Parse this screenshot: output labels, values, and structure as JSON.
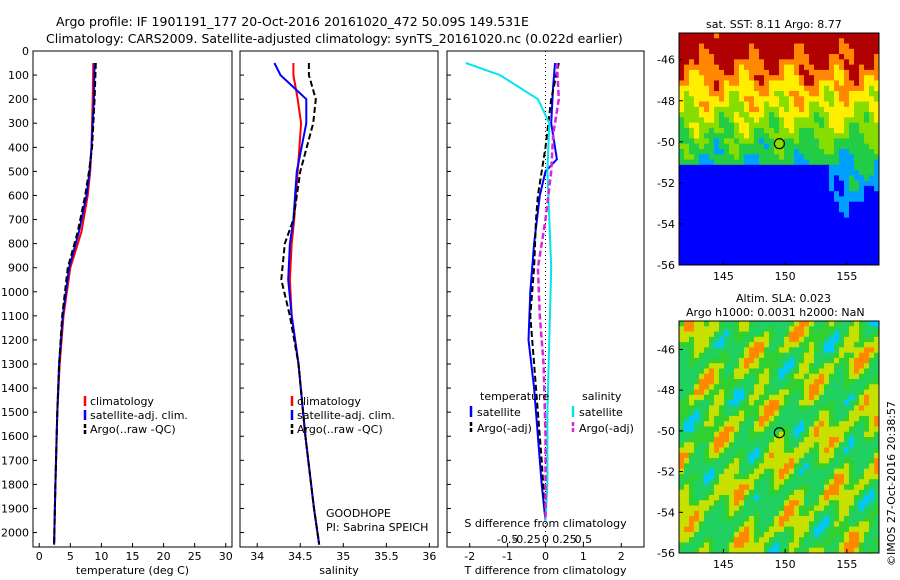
{
  "header": {
    "line1": "Argo profile: IF 1901191_177 20-Oct-2016 20161020_472 50.09S 149.531E",
    "line2": "Climatology: CARS2009. Satellite-adjusted climatology: synTS_20161020.nc (0.022d earlier)"
  },
  "map_titles": {
    "sst": "sat. SST: 8.11 Argo: 8.77",
    "sla1": "Altim. SLA: 0.023",
    "sla2": "Argo h1000: 0.0031 h2000: NaN"
  },
  "stamp": "©IMOS 27-Oct-2016 20:38:57",
  "colors": {
    "climatology": "#ff0000",
    "satellite": "#0000ff",
    "argo": "#000000",
    "sat_salinity": "#00e5ee",
    "argo_salinity": "#e020e0"
  },
  "chart_data": [
    {
      "type": "line",
      "xlabel": "temperature (deg C)",
      "ylabel": "",
      "xlim": [
        -1,
        31
      ],
      "ylim": [
        2060,
        0
      ],
      "xticks": [
        0,
        5,
        10,
        15,
        20,
        25,
        30
      ],
      "yticks": [
        0,
        100,
        200,
        300,
        400,
        500,
        600,
        700,
        800,
        900,
        1000,
        1100,
        1200,
        1300,
        1400,
        1500,
        1600,
        1700,
        1800,
        1900,
        2000
      ],
      "legend": [
        "climatology",
        "satellite-adj. clim.",
        "Argo(..raw -QC)"
      ],
      "series": [
        {
          "name": "climatology",
          "x": [
            8.7,
            8.6,
            8.4,
            8.2,
            7.8,
            6.8,
            5.0,
            3.9,
            3.3,
            2.9,
            2.6,
            2.4
          ],
          "y": [
            50,
            200,
            400,
            500,
            600,
            750,
            900,
            1100,
            1300,
            1500,
            1800,
            2050
          ]
        },
        {
          "name": "satellite-adj. clim.",
          "x": [
            8.9,
            8.8,
            8.4,
            8.1,
            7.6,
            6.4,
            4.8,
            3.8,
            3.2,
            2.9,
            2.6,
            2.4
          ],
          "y": [
            50,
            200,
            400,
            500,
            600,
            750,
            900,
            1100,
            1300,
            1500,
            1800,
            2050
          ]
        },
        {
          "name": "Argo(..raw -QC)",
          "x": [
            9.1,
            8.9,
            8.5,
            8.0,
            7.4,
            6.2,
            4.6,
            3.7,
            3.2,
            2.9,
            2.6,
            2.4
          ],
          "y": [
            50,
            200,
            400,
            500,
            600,
            750,
            900,
            1100,
            1300,
            1500,
            1800,
            2050
          ]
        }
      ]
    },
    {
      "type": "line",
      "xlabel": "salinity",
      "xlim": [
        33.8,
        36.1
      ],
      "ylim": [
        2060,
        0
      ],
      "xticks": [
        34,
        34.5,
        35,
        35.5,
        36
      ],
      "legend": [
        "climatology",
        "satellite-adj. clim.",
        "Argo(..raw -QC)"
      ],
      "annotation": [
        "GOODHOPE",
        "PI: Sabrina SPEICH"
      ],
      "series": [
        {
          "name": "climatology",
          "x": [
            34.42,
            34.42,
            34.47,
            34.51,
            34.47,
            34.43,
            34.4,
            34.38,
            34.4,
            34.48,
            34.56,
            34.66,
            34.72
          ],
          "y": [
            50,
            100,
            200,
            300,
            500,
            700,
            800,
            950,
            1100,
            1300,
            1600,
            1900,
            2050
          ]
        },
        {
          "name": "satellite-adj. clim.",
          "x": [
            34.2,
            34.27,
            34.57,
            34.57,
            34.46,
            34.42,
            34.38,
            34.36,
            34.4,
            34.48,
            34.56,
            34.66,
            34.72
          ],
          "y": [
            50,
            100,
            200,
            300,
            500,
            700,
            800,
            950,
            1100,
            1300,
            1600,
            1900,
            2050
          ]
        },
        {
          "name": "Argo(..raw -QC)",
          "x": [
            34.6,
            34.6,
            34.68,
            34.65,
            34.5,
            34.42,
            34.32,
            34.28,
            34.38,
            34.48,
            34.56,
            34.66,
            34.72
          ],
          "y": [
            50,
            100,
            200,
            300,
            500,
            700,
            800,
            950,
            1100,
            1300,
            1600,
            1900,
            2050
          ]
        }
      ]
    },
    {
      "type": "line",
      "xlabel": "T difference from climatology",
      "top_label": "S difference from climatology",
      "xlim": [
        -2.6,
        2.6
      ],
      "ylim": [
        2060,
        0
      ],
      "xticks": [
        -2,
        -1,
        0,
        1,
        2
      ],
      "top_ticks": [
        "-0.5",
        "-0.25",
        "0",
        "0.25",
        "0.5"
      ],
      "legend_groups": [
        "temperature",
        "salinity"
      ],
      "legend": [
        "satellite",
        "Argo(-adj)",
        "satellite",
        "Argo(-adj)"
      ],
      "series": [
        {
          "name": "satellite",
          "group": "temperature",
          "x": [
            0.25,
            0.2,
            0.15,
            0.3,
            0.0,
            -0.15,
            -0.3,
            -0.4,
            -0.45,
            -0.3,
            -0.2,
            -0.1,
            0.0
          ],
          "y": [
            50,
            150,
            300,
            450,
            500,
            600,
            800,
            1000,
            1200,
            1400,
            1600,
            1800,
            1950
          ]
        },
        {
          "name": "Argo(-adj)",
          "group": "temperature",
          "x": [
            0.35,
            0.15,
            0.0,
            -0.1,
            -0.2,
            -0.25,
            -0.3,
            -0.4,
            -0.3,
            -0.2,
            -0.1,
            0.0
          ],
          "y": [
            50,
            200,
            400,
            500,
            600,
            700,
            900,
            1100,
            1300,
            1500,
            1700,
            1950
          ]
        },
        {
          "name": "satellite",
          "group": "salinity",
          "x": [
            -2.1,
            -1.2,
            -0.2,
            0.1,
            0.05,
            0.1,
            0.15,
            0.1,
            0.05,
            0.05,
            0.0
          ],
          "y": [
            50,
            100,
            200,
            300,
            500,
            700,
            900,
            1200,
            1500,
            1800,
            1950
          ]
        },
        {
          "name": "Argo(-adj)",
          "group": "salinity",
          "x": [
            0.3,
            0.35,
            0.2,
            0.15,
            0.0,
            -0.2,
            -0.15,
            -0.05,
            0.0,
            0.0
          ],
          "y": [
            50,
            200,
            350,
            500,
            700,
            900,
            1100,
            1300,
            1600,
            1950
          ]
        }
      ]
    }
  ],
  "maps": {
    "xticks": [
      "145",
      "150",
      "155"
    ],
    "yticks": [
      "-46",
      "-48",
      "-50",
      "-52",
      "-54",
      "-56"
    ]
  }
}
